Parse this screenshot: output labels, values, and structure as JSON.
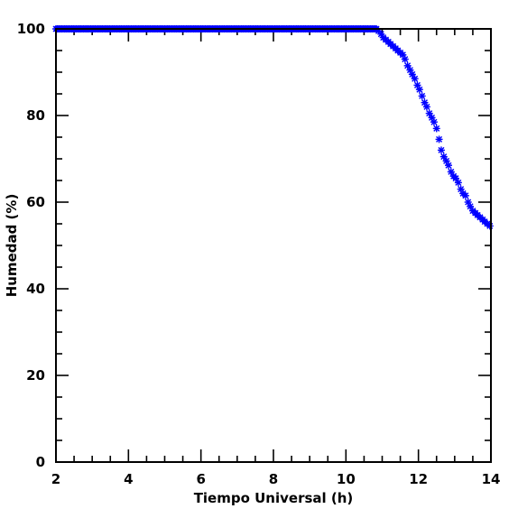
{
  "chart_data": {
    "type": "scatter",
    "xlabel": "Tiempo Universal (h)",
    "ylabel": "Humedad (%)",
    "xlim": [
      2,
      14
    ],
    "ylim": [
      0,
      100
    ],
    "x_major_ticks": [
      2,
      4,
      6,
      8,
      10,
      12,
      14
    ],
    "x_tick_labels": [
      "2",
      "4",
      "6",
      "8",
      "10",
      "12",
      "14"
    ],
    "y_major_ticks": [
      0,
      20,
      40,
      60,
      80,
      100
    ],
    "y_tick_labels": [
      "0",
      "20",
      "40",
      "60",
      "80",
      "100"
    ],
    "marker": "asterisk",
    "color": "#0000ff",
    "grid": false,
    "series": [
      {
        "x": [
          10.9,
          10.97,
          11.03,
          11.1,
          11.17,
          11.23,
          11.3,
          11.37,
          11.43,
          11.5,
          11.57,
          11.63,
          11.7,
          11.77,
          11.83,
          11.9,
          11.97,
          12.03,
          12.1,
          12.17,
          12.23,
          12.3,
          12.37,
          12.43,
          12.5,
          12.57,
          12.63,
          12.7,
          12.77,
          12.83,
          12.9,
          12.97,
          13.03,
          13.1,
          13.17,
          13.23,
          13.3,
          13.37,
          13.43,
          13.5,
          13.57,
          13.63,
          13.7,
          13.77,
          13.83,
          13.9,
          13.97
        ],
        "y": [
          99.5,
          98.8,
          98.0,
          97.5,
          97.0,
          96.5,
          96.0,
          95.5,
          95.0,
          94.5,
          94.0,
          93.0,
          91.5,
          90.5,
          89.5,
          88.5,
          87.0,
          86.0,
          84.5,
          83.0,
          82.0,
          80.5,
          79.5,
          78.5,
          77.0,
          74.5,
          72.0,
          70.5,
          69.5,
          68.5,
          67.0,
          66.0,
          65.5,
          64.5,
          63.0,
          62.0,
          61.5,
          60.0,
          59.0,
          58.0,
          57.5,
          57.0,
          56.5,
          56.0,
          55.5,
          55.0,
          54.5
        ]
      }
    ],
    "flat_segment": {
      "x_start": 2,
      "x_end": 10.87,
      "y": 100
    }
  }
}
